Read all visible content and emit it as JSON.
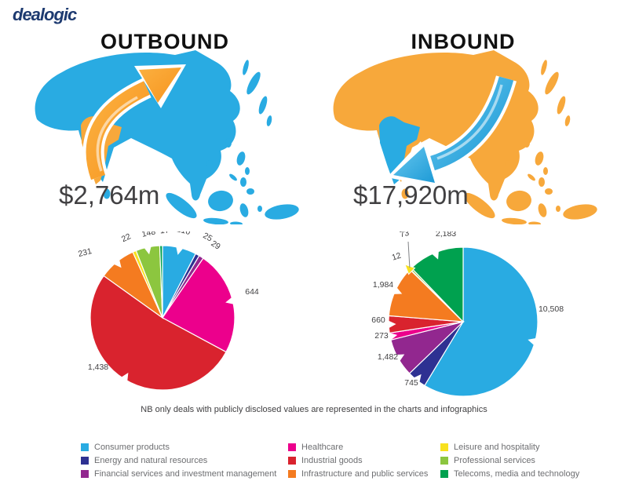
{
  "brand": {
    "logo_text": "dealogic"
  },
  "panels": {
    "outbound": {
      "title": "OUTBOUND",
      "amount": "$2,764m"
    },
    "inbound": {
      "title": "INBOUND",
      "amount": "$17,920m"
    }
  },
  "note": "NB only deals with publicly disclosed values are represented in the charts and infographics",
  "colors": {
    "logo_navy": "#1d3a70",
    "text_dark": "#414042",
    "legend_text": "#6d6e71",
    "map_blue": "#29ABE2",
    "map_orange": "#F7A83B",
    "arrow_orange_light": "#FBB040",
    "arrow_orange_dark": "#F7941E",
    "arrow_blue_light": "#67C8EF",
    "arrow_blue_dark": "#1D9AD6"
  },
  "chart_data": [
    {
      "id": "outbound",
      "type": "pie",
      "title": "OUTBOUND",
      "total": 2764,
      "total_label": "$2,764m",
      "categories": [
        "Consumer products",
        "Energy and natural resources",
        "Financial services and investment management",
        "Healthcare",
        "Industrial goods",
        "Infrastructure and public services",
        "Leisure and hospitality",
        "Professional services",
        "Telecoms, media and technology"
      ],
      "values": [
        210,
        25,
        29,
        644,
        1438,
        231,
        22,
        148,
        17
      ],
      "labels": [
        "210",
        "25",
        "29",
        "644",
        "1,438",
        "231",
        "22",
        "148",
        "17"
      ],
      "colors": [
        "#29ABE2",
        "#2E3192",
        "#92278F",
        "#EC008C",
        "#D9232E",
        "#F47B20",
        "#F8E11E",
        "#8CC63F",
        "#00A14F"
      ],
      "start_angle_deg": 0,
      "direction": "clockwise",
      "legend_position": "bottom"
    },
    {
      "id": "inbound",
      "type": "pie",
      "title": "INBOUND",
      "total": 17920,
      "total_label": "$17,920m",
      "categories": [
        "Consumer products",
        "Energy and natural resources",
        "Financial services and investment management",
        "Healthcare",
        "Industrial goods",
        "Infrastructure and public services",
        "Leisure and hospitality",
        "Professional services",
        "Telecoms, media and technology"
      ],
      "values": [
        10508,
        745,
        1482,
        273,
        660,
        1984,
        12,
        73,
        2183
      ],
      "labels": [
        "10,508",
        "745",
        "1,482",
        "273",
        "660",
        "1,984",
        "12",
        "73",
        "2,183"
      ],
      "colors": [
        "#29ABE2",
        "#2E3192",
        "#92278F",
        "#EC008C",
        "#D9232E",
        "#F47B20",
        "#F8E11E",
        "#8CC63F",
        "#00A14F"
      ],
      "start_angle_deg": 0,
      "direction": "clockwise",
      "legend_position": "bottom"
    }
  ],
  "legend": {
    "items": [
      {
        "label": "Consumer products",
        "color": "#29ABE2"
      },
      {
        "label": "Energy and natural resources",
        "color": "#2E3192"
      },
      {
        "label": "Financial services and investment management",
        "color": "#92278F"
      },
      {
        "label": "Healthcare",
        "color": "#EC008C"
      },
      {
        "label": "Industrial goods",
        "color": "#D9232E"
      },
      {
        "label": "Infrastructure and public services",
        "color": "#F47B20"
      },
      {
        "label": "Leisure and hospitality",
        "color": "#F8E11E"
      },
      {
        "label": "Professional services",
        "color": "#8CC63F"
      },
      {
        "label": "Telecoms, media and technology",
        "color": "#00A14F"
      }
    ]
  }
}
